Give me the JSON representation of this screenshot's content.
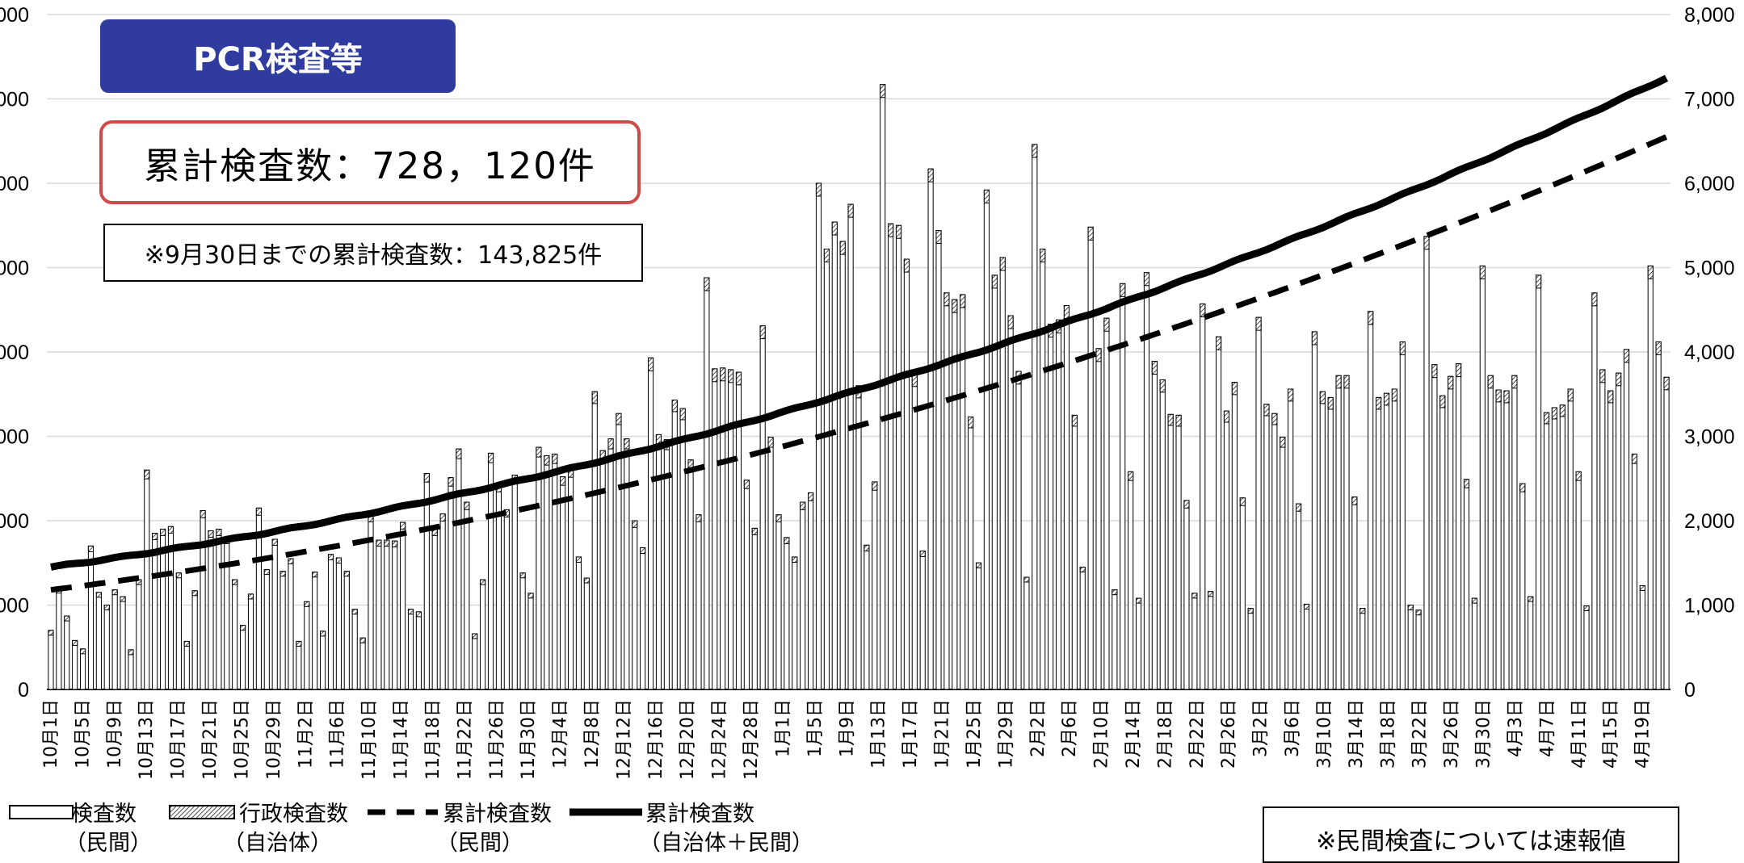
{
  "badge": {
    "title": "PCR検査等"
  },
  "summary": {
    "total": "累計検査数：728，120件",
    "sept": "※9月30日までの累計検査数：143,825件"
  },
  "note": "※民間検査については速報値",
  "legend": [
    {
      "line1": "検査数",
      "line2": "（民間）"
    },
    {
      "line1": "行政検査数",
      "line2": "（自治体）"
    },
    {
      "line1": "累計検査数",
      "line2": "（民間）"
    },
    {
      "line1": "累計検査数",
      "line2": "（自治体＋民間）"
    }
  ],
  "colors": {
    "badge": "#2f3b9e",
    "total_border": "#d14a4a",
    "grid": "#d9d9d9",
    "axis": "#000000"
  },
  "chart_data": {
    "type": "bar",
    "series": [
      {
        "name": "検査数（民間）",
        "kind": "bar",
        "axis": "left"
      },
      {
        "name": "行政検査数（自治体）",
        "kind": "bar-hatched",
        "axis": "left"
      },
      {
        "name": "累計検査数（民間）",
        "kind": "dashed-line",
        "axis": "right"
      },
      {
        "name": "累計検査数（自治体＋民間）",
        "kind": "line",
        "axis": "right"
      }
    ],
    "y_left": {
      "ticks": [
        "000",
        "000",
        "000",
        "000",
        "000",
        "000",
        "000",
        "000",
        "0"
      ],
      "range": [
        0,
        8000
      ],
      "gridlines": true
    },
    "y_right": {
      "ticks": [
        "8,000",
        "7,000",
        "6,000",
        "5,000",
        "4,000",
        "3,000",
        "2,000",
        "1,000",
        "0"
      ],
      "range": [
        0,
        8000
      ]
    },
    "x_labels": [
      "10月1日",
      "10月5日",
      "10月9日",
      "10月13日",
      "10月17日",
      "10月21日",
      "10月25日",
      "10月29日",
      "11月2日",
      "11月6日",
      "11月10日",
      "11月14日",
      "11月18日",
      "11月22日",
      "11月26日",
      "11月30日",
      "12月4日",
      "12月8日",
      "12月12日",
      "12月16日",
      "12月20日",
      "12月24日",
      "12月28日",
      "1月1日",
      "1月5日",
      "1月9日",
      "1月13日",
      "1月17日",
      "1月21日",
      "1月25日",
      "1月29日",
      "2月2日",
      "2月6日",
      "2月10日",
      "2月14日",
      "2月18日",
      "2月22日",
      "2月26日",
      "3月2日",
      "3月6日",
      "3月10日",
      "3月14日",
      "3月18日",
      "3月22日",
      "3月26日",
      "3月30日",
      "4月3日",
      "4月7日",
      "4月11日",
      "4月15日",
      "4月19日"
    ],
    "daily_total": [
      700,
      1200,
      870,
      580,
      480,
      1700,
      1150,
      1000,
      1180,
      1100,
      470,
      1300,
      2600,
      1850,
      1900,
      1930,
      1380,
      570,
      1170,
      2120,
      1880,
      1900,
      1800,
      1300,
      760,
      1130,
      2150,
      1420,
      1780,
      1400,
      1550,
      570,
      1040,
      1390,
      690,
      1600,
      1560,
      1400,
      950,
      610,
      2070,
      1770,
      1770,
      1760,
      1980,
      950,
      920,
      2560,
      1900,
      2080,
      2510,
      2850,
      2220,
      660,
      1300,
      2800,
      2440,
      2130,
      2540,
      1380,
      1140,
      2870,
      2770,
      2790,
      2520,
      2620,
      1570,
      1320,
      3530,
      2830,
      2970,
      3270,
      2970,
      2000,
      1680,
      3930,
      3020,
      2960,
      3430,
      3330,
      2720,
      2070,
      4880,
      3800,
      3810,
      3790,
      3760,
      2480,
      1910,
      4310,
      2990,
      2070,
      1800,
      1570,
      2220,
      2330,
      6000,
      5220,
      5540,
      5310,
      5750,
      3600,
      1710,
      2460,
      7170,
      5520,
      5500,
      5100,
      3740,
      1640,
      6170,
      5440,
      4700,
      4620,
      4680,
      3230,
      1500,
      5920,
      4910,
      5120,
      4430,
      3770,
      1330,
      6460,
      5220,
      4330,
      4380,
      4550,
      3250,
      1450,
      5480,
      4040,
      4400,
      1180,
      4810,
      2580,
      1080,
      4940,
      3890,
      3670,
      3260,
      3250,
      2240,
      1140,
      4570,
      1160,
      4180,
      3300,
      3640,
      2270,
      960,
      4410,
      3380,
      3270,
      2990,
      3560,
      2200,
      1010,
      4240,
      3530,
      3460,
      3720,
      3720,
      2280,
      960,
      4480,
      3460,
      3510,
      3560,
      4120,
      1000,
      940,
      5370,
      3850,
      3480,
      3710,
      3860,
      2490,
      1080,
      5020,
      3720,
      3550,
      3540,
      3720,
      2440,
      1100,
      4910,
      3280,
      3340,
      3370,
      3560,
      2580,
      990,
      4700,
      3790,
      3540,
      3750,
      4030,
      2790,
      1230,
      5020,
      4120,
      3700
    ],
    "cumulative_total_start": 1450,
    "cumulative_total_end": 7250,
    "cumulative_private_start": 1180,
    "cumulative_private_end": 6550
  }
}
